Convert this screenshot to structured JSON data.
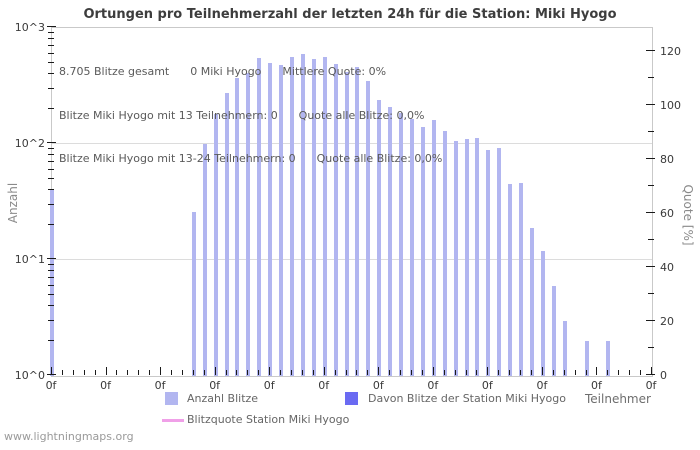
{
  "title": "Ortungen pro Teilnehmerzahl der letzten 24h für die Station: Miki Hyogo",
  "info_lines": {
    "line1": "8.705 Blitze gesamt      0 Miki Hyogo      Mittlere Quote: 0%",
    "line2": "Blitze Miki Hyogo mit 13 Teilnehmern: 0      Quote alle Blitze: 0,0%",
    "line3": "Blitze Miki Hyogo mit 13-24 Teilnehmern: 0      Quote alle Blitze: 0,0%"
  },
  "legend": {
    "anzahl_blitze": "Anzahl Blitze",
    "davon_station": "Davon Blitze der Station Miki Hyogo",
    "blitzquote": "Blitzquote Station Miki Hyogo"
  },
  "footer": "www.lightningmaps.org",
  "colors": {
    "bar_light": "#b2b6f0",
    "bar_dark": "#6a6af2",
    "quote_line": "#f0a0e8",
    "grid": "#dcdcdc",
    "plot_border": "#c9c9c9"
  },
  "chart_data": {
    "type": "bar",
    "title": "Ortungen pro Teilnehmerzahl der letzten 24h für die Station: Miki Hyogo",
    "xlabel": "Teilnehmer",
    "ylabel": "Anzahl",
    "y2label": "Quote [%]",
    "y_scale": "log10",
    "ylim": [
      1,
      1000
    ],
    "y2lim": [
      0,
      120
    ],
    "xlim": [
      0,
      55
    ],
    "x_major_tick_spacing": 5,
    "x_minor_tick_spacing": 1,
    "grid": "horizontal-decades",
    "legend_position": "bottom",
    "left_tick_labels": [
      "10^3",
      "10^2",
      "10^1",
      "10^0"
    ],
    "right_tick_labels": [
      "120",
      "100",
      "80",
      "60",
      "40",
      "20",
      "0"
    ],
    "x_tick_label_text": "0f",
    "x_major_tick_count": 12,
    "series": [
      {
        "name": "Anzahl Blitze",
        "type": "bar",
        "color_key": "bar_light",
        "points": [
          [
            0,
            40
          ],
          [
            13,
            26
          ],
          [
            14,
            100
          ],
          [
            15,
            180
          ],
          [
            16,
            275
          ],
          [
            17,
            370
          ],
          [
            18,
            410
          ],
          [
            19,
            550
          ],
          [
            20,
            500
          ],
          [
            21,
            480
          ],
          [
            22,
            560
          ],
          [
            23,
            600
          ],
          [
            24,
            540
          ],
          [
            25,
            560
          ],
          [
            26,
            490
          ],
          [
            27,
            420
          ],
          [
            28,
            460
          ],
          [
            29,
            350
          ],
          [
            30,
            240
          ],
          [
            31,
            210
          ],
          [
            32,
            185
          ],
          [
            33,
            165
          ],
          [
            34,
            140
          ],
          [
            35,
            160
          ],
          [
            36,
            130
          ],
          [
            37,
            107
          ],
          [
            38,
            110
          ],
          [
            39,
            112
          ],
          [
            40,
            88
          ],
          [
            41,
            92
          ],
          [
            42,
            45
          ],
          [
            43,
            46
          ],
          [
            44,
            19
          ],
          [
            45,
            12
          ],
          [
            46,
            6
          ],
          [
            47,
            3
          ],
          [
            49,
            2
          ],
          [
            51,
            2
          ]
        ]
      },
      {
        "name": "Davon Blitze der Station Miki Hyogo",
        "type": "bar",
        "color_key": "bar_dark",
        "points": []
      },
      {
        "name": "Blitzquote Station Miki Hyogo",
        "type": "line",
        "color_key": "quote_line",
        "points": []
      }
    ]
  }
}
